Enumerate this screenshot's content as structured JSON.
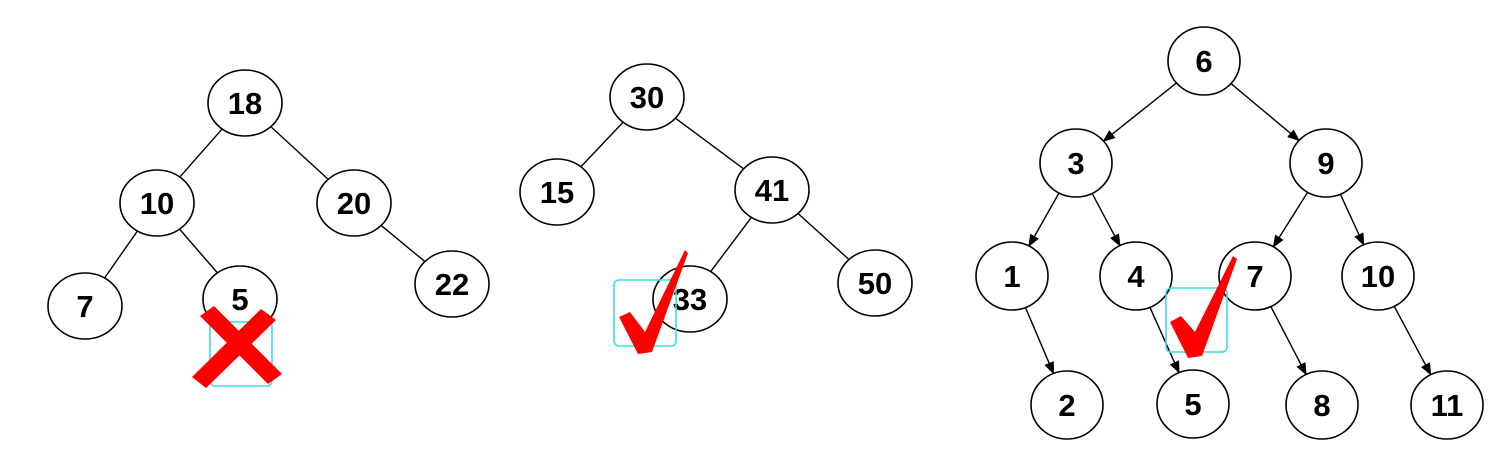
{
  "marks": {
    "colors": {
      "mark": "#ff0000",
      "selection_box": "#36e0e0"
    }
  },
  "tree1": {
    "mark": "cross-icon",
    "nodes": [
      {
        "id": "n18",
        "label": "18"
      },
      {
        "id": "n10",
        "label": "10"
      },
      {
        "id": "n20",
        "label": "20"
      },
      {
        "id": "n7",
        "label": "7"
      },
      {
        "id": "n5",
        "label": "5"
      },
      {
        "id": "n22",
        "label": "22"
      }
    ],
    "edges": [
      [
        "n18",
        "n10"
      ],
      [
        "n18",
        "n20"
      ],
      [
        "n10",
        "n7"
      ],
      [
        "n10",
        "n5"
      ],
      [
        "n20",
        "n22"
      ]
    ],
    "directed": false
  },
  "tree2": {
    "mark": "check-icon",
    "nodes": [
      {
        "id": "n30",
        "label": "30"
      },
      {
        "id": "n15",
        "label": "15"
      },
      {
        "id": "n41",
        "label": "41"
      },
      {
        "id": "n33",
        "label": "33"
      },
      {
        "id": "n50",
        "label": "50"
      }
    ],
    "edges": [
      [
        "n30",
        "n15"
      ],
      [
        "n30",
        "n41"
      ],
      [
        "n41",
        "n33"
      ],
      [
        "n41",
        "n50"
      ]
    ],
    "directed": false
  },
  "tree3": {
    "mark": "check-icon",
    "nodes": [
      {
        "id": "n6",
        "label": "6"
      },
      {
        "id": "n3",
        "label": "3"
      },
      {
        "id": "n9",
        "label": "9"
      },
      {
        "id": "n1",
        "label": "1"
      },
      {
        "id": "n4",
        "label": "4"
      },
      {
        "id": "n7",
        "label": "7"
      },
      {
        "id": "n10",
        "label": "10"
      },
      {
        "id": "n2",
        "label": "2"
      },
      {
        "id": "n5",
        "label": "5"
      },
      {
        "id": "n8",
        "label": "8"
      },
      {
        "id": "n11",
        "label": "11"
      }
    ],
    "edges": [
      [
        "n6",
        "n3"
      ],
      [
        "n6",
        "n9"
      ],
      [
        "n3",
        "n1"
      ],
      [
        "n3",
        "n4"
      ],
      [
        "n9",
        "n7"
      ],
      [
        "n9",
        "n10"
      ],
      [
        "n1",
        "n2"
      ],
      [
        "n4",
        "n5"
      ],
      [
        "n7",
        "n8"
      ],
      [
        "n10",
        "n11"
      ]
    ],
    "directed": true
  }
}
